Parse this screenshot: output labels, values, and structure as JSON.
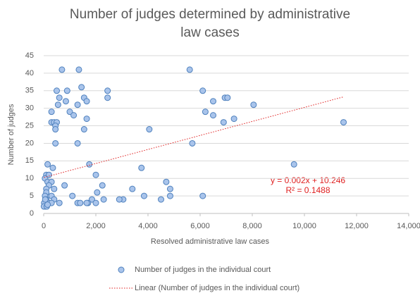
{
  "chart_data": {
    "type": "scatter",
    "title": "Number of judges determined by administrative law cases",
    "x_label": "Resolved administrative law cases",
    "y_label": "Number of judges",
    "xlim": [
      0,
      14000
    ],
    "xticks": [
      0,
      {
        "value": 2000,
        "label": "2,000"
      },
      {
        "value": 4000,
        "label": "4,000"
      },
      {
        "value": 6000,
        "label": "6,000"
      },
      {
        "value": 8000,
        "label": "8,000"
      },
      {
        "value": 10000,
        "label": "10,000"
      },
      {
        "value": 12000,
        "label": "12,000"
      },
      {
        "value": 14000,
        "label": "14,000"
      }
    ],
    "ylim": [
      0,
      45
    ],
    "yticks": [
      0,
      5,
      10,
      15,
      20,
      25,
      30,
      35,
      40,
      45
    ],
    "grid": true,
    "series": [
      {
        "name": "Number of judges in the individual court",
        "color": "#a9c4eb",
        "edge_color": "#4f81bd",
        "x": [
          5600,
          700,
          1350,
          6100,
          900,
          500,
          2450,
          1450,
          1550,
          2450,
          6950,
          7050,
          600,
          6500,
          850,
          1650,
          1300,
          550,
          8050,
          300,
          1000,
          6200,
          1150,
          6500,
          7300,
          1650,
          300,
          400,
          500,
          6900,
          11500,
          450,
          4050,
          1550,
          450,
          5700,
          450,
          1300,
          1750,
          9600,
          150,
          350,
          3750,
          100,
          200,
          2000,
          50,
          150,
          300,
          4700,
          800,
          200,
          2250,
          100,
          400,
          3400,
          4850,
          2050,
          100,
          4850,
          3850,
          6100,
          1100,
          300,
          50,
          2300,
          3050,
          2900,
          4500,
          1850,
          400,
          100,
          1300,
          1700,
          1650,
          600,
          1400,
          2000,
          200,
          300,
          50,
          20,
          80,
          30,
          10,
          120,
          60,
          150
        ],
        "values": [
          41,
          41,
          41,
          35,
          35,
          35,
          35,
          36,
          33,
          33,
          33,
          33,
          33,
          32,
          32,
          32,
          31,
          31,
          31,
          29,
          29,
          29,
          28,
          28,
          27,
          27,
          26,
          26,
          26,
          26,
          26,
          25,
          24,
          24,
          24,
          20,
          20,
          20,
          14,
          14,
          14,
          13,
          13,
          11,
          11,
          11,
          10,
          9,
          9,
          9,
          8,
          8,
          8,
          7,
          7,
          7,
          7,
          6,
          6,
          5,
          5,
          5,
          5,
          5,
          5,
          4,
          4,
          4,
          4,
          4,
          4,
          4,
          3,
          3,
          3,
          3,
          3,
          3,
          3,
          3,
          3,
          3,
          2,
          2,
          2,
          2,
          4,
          2.5
        ]
      }
    ],
    "trendline": {
      "name": "Linear (Number of judges in the individual court)",
      "color": "#e02020",
      "slope": 0.002,
      "intercept": 10.246,
      "equation": "y = 0.002x + 10.246",
      "r2": "R² = 0.1488"
    }
  }
}
